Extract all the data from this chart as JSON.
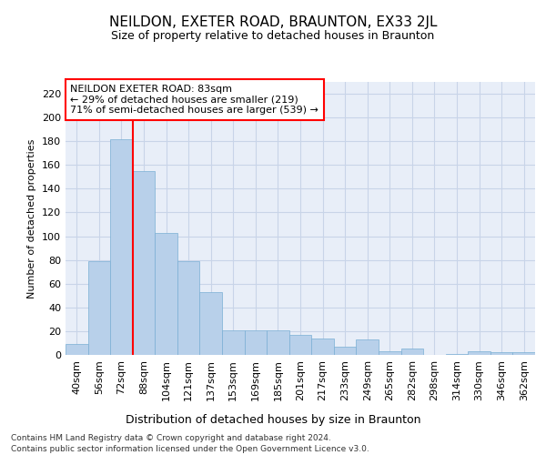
{
  "title": "NEILDON, EXETER ROAD, BRAUNTON, EX33 2JL",
  "subtitle": "Size of property relative to detached houses in Braunton",
  "xlabel": "Distribution of detached houses by size in Braunton",
  "ylabel": "Number of detached properties",
  "categories": [
    "40sqm",
    "56sqm",
    "72sqm",
    "88sqm",
    "104sqm",
    "121sqm",
    "137sqm",
    "153sqm",
    "169sqm",
    "185sqm",
    "201sqm",
    "217sqm",
    "233sqm",
    "249sqm",
    "265sqm",
    "282sqm",
    "298sqm",
    "314sqm",
    "330sqm",
    "346sqm",
    "362sqm"
  ],
  "values": [
    9,
    79,
    182,
    155,
    103,
    79,
    53,
    21,
    21,
    21,
    17,
    14,
    7,
    13,
    3,
    5,
    0,
    1,
    3,
    2,
    2
  ],
  "bar_color": "#b8d0ea",
  "bar_edge_color": "#7aafd4",
  "vline_color": "red",
  "vline_index": 2,
  "annotation_text": "NEILDON EXETER ROAD: 83sqm\n← 29% of detached houses are smaller (219)\n71% of semi-detached houses are larger (539) →",
  "annotation_box_color": "white",
  "annotation_box_edge_color": "red",
  "ylim": [
    0,
    230
  ],
  "yticks": [
    0,
    20,
    40,
    60,
    80,
    100,
    120,
    140,
    160,
    180,
    200,
    220
  ],
  "grid_color": "#c8d4e8",
  "background_color": "#e8eef8",
  "footer_line1": "Contains HM Land Registry data © Crown copyright and database right 2024.",
  "footer_line2": "Contains public sector information licensed under the Open Government Licence v3.0."
}
